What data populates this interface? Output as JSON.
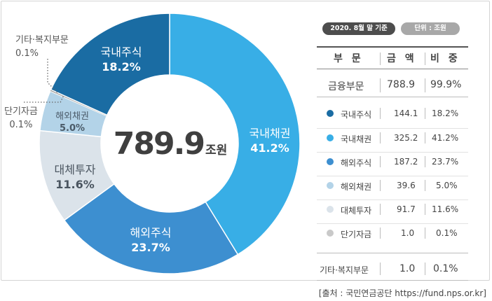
{
  "chart_data": {
    "type": "pie",
    "variant": "donut",
    "center_total": "789.9",
    "center_unit": "조원",
    "slices": [
      {
        "name": "국내채권",
        "value": 41.2,
        "label": "41.2%",
        "color": "#38aee6"
      },
      {
        "name": "해외주식",
        "value": 23.7,
        "label": "23.7%",
        "color": "#3d8fd0"
      },
      {
        "name": "대체투자",
        "value": 11.6,
        "label": "11.6%",
        "color": "#dbe3ea"
      },
      {
        "name": "해외채권",
        "value": 5.0,
        "label": "5.0%",
        "color": "#b3d3e8"
      },
      {
        "name": "단기자금",
        "value": 0.1,
        "label": "0.1%",
        "color": "#c9c9c9"
      },
      {
        "name": "기타·복지부문",
        "value": 0.1,
        "label": "0.1%",
        "color": "#2c2c2c"
      },
      {
        "name": "국내주식",
        "value": 18.2,
        "label": "18.2%",
        "color": "#1a6ca3"
      }
    ]
  },
  "table": {
    "date_badge": "2020. 8월 말 기준",
    "unit_badge": "단위 : 조원",
    "headers": [
      "부 문",
      "금 액",
      "비 중"
    ],
    "total": {
      "label": "금융부문",
      "amount": "788.9",
      "share": "99.9%"
    },
    "rows": [
      {
        "label": "국내주식",
        "amount": "144.1",
        "share": "18.2%",
        "color": "#1a6ca3"
      },
      {
        "label": "국내채권",
        "amount": "325.2",
        "share": "41.2%",
        "color": "#38aee6"
      },
      {
        "label": "해외주식",
        "amount": "187.2",
        "share": "23.7%",
        "color": "#3d8fd0"
      },
      {
        "label": "해외채권",
        "amount": "39.6",
        "share": "5.0%",
        "color": "#b3d3e8"
      },
      {
        "label": "대체투자",
        "amount": "91.7",
        "share": "11.6%",
        "color": "#dbe3ea"
      },
      {
        "label": "단기자금",
        "amount": "1.0",
        "share": "0.1%",
        "color": "#c9c9c9"
      }
    ],
    "other": {
      "label": "기타·복지부문",
      "amount": "1.0",
      "share": "0.1%"
    }
  },
  "source": "[출처 : 국민연금공단  https://fund.nps.or.kr]"
}
